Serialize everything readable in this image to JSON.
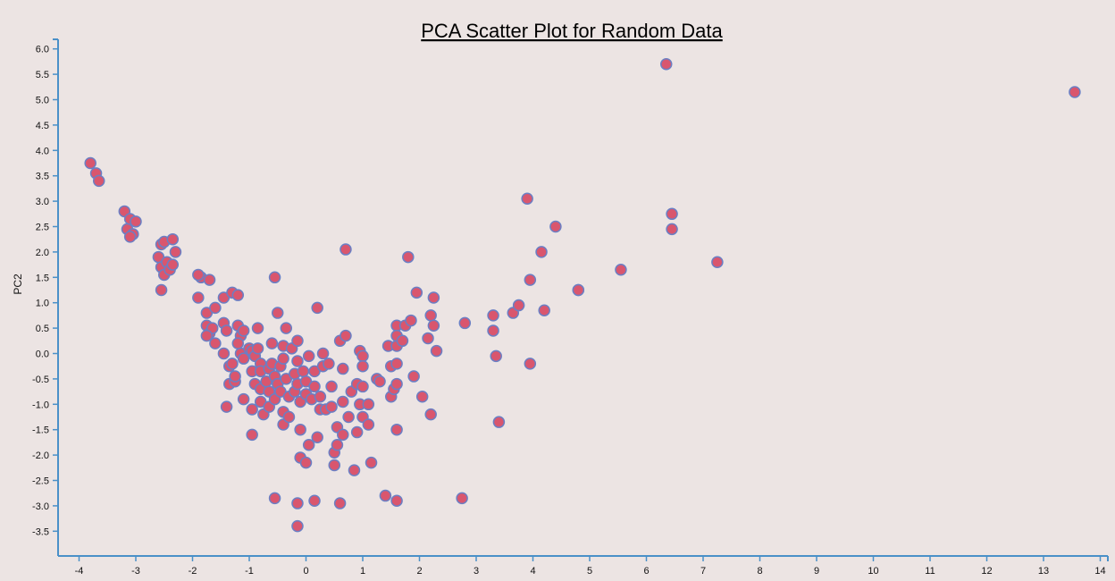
{
  "chart_data": {
    "type": "scatter",
    "title": "PCA Scatter Plot for Random Data",
    "xlabel": "",
    "ylabel": "PC2",
    "xlim": [
      -4.4,
      14.4
    ],
    "ylim": [
      -4.0,
      6.2
    ],
    "x_ticks": [
      "-4",
      "-3",
      "-2",
      "-1",
      "0",
      "1",
      "2",
      "3",
      "4",
      "5",
      "6",
      "7",
      "8",
      "9",
      "10",
      "11",
      "12",
      "13",
      "14"
    ],
    "y_ticks": [
      "-3.5",
      "-3.0",
      "-2.5",
      "-2.0",
      "-1.5",
      "-1.0",
      "-0.5",
      "0.0",
      "0.5",
      "1.0",
      "1.5",
      "2.0",
      "2.5",
      "3.0",
      "3.5",
      "4.0",
      "4.5",
      "5.0",
      "5.5",
      "6.0"
    ],
    "grid": false,
    "colors": {
      "point_fill": "#d9566e",
      "point_stroke": "#6b7fc4",
      "axis": "#4a90c8",
      "background": "#ece4e3"
    },
    "points": [
      [
        -3.8,
        3.75
      ],
      [
        -3.7,
        3.55
      ],
      [
        -3.65,
        3.4
      ],
      [
        -3.2,
        2.8
      ],
      [
        -3.15,
        2.45
      ],
      [
        -3.1,
        2.65
      ],
      [
        -3.05,
        2.35
      ],
      [
        -3.0,
        2.6
      ],
      [
        -3.1,
        2.3
      ],
      [
        -2.6,
        1.9
      ],
      [
        -2.55,
        2.15
      ],
      [
        -2.5,
        2.2
      ],
      [
        -2.55,
        1.7
      ],
      [
        -2.5,
        1.55
      ],
      [
        -2.45,
        1.8
      ],
      [
        -2.4,
        1.65
      ],
      [
        -2.35,
        1.75
      ],
      [
        -2.35,
        2.25
      ],
      [
        -2.3,
        2.0
      ],
      [
        -2.55,
        1.25
      ],
      [
        -1.9,
        1.1
      ],
      [
        -1.85,
        1.5
      ],
      [
        -1.9,
        1.55
      ],
      [
        -1.7,
        1.45
      ],
      [
        -1.75,
        0.8
      ],
      [
        -1.6,
        0.9
      ],
      [
        -1.75,
        0.55
      ],
      [
        -1.7,
        0.4
      ],
      [
        -1.65,
        0.5
      ],
      [
        -1.6,
        0.2
      ],
      [
        -1.75,
        0.35
      ],
      [
        -1.45,
        1.1
      ],
      [
        -1.3,
        1.2
      ],
      [
        -1.2,
        1.15
      ],
      [
        -1.45,
        0.6
      ],
      [
        -1.4,
        0.45
      ],
      [
        -1.45,
        0.0
      ],
      [
        -1.35,
        -0.25
      ],
      [
        -1.3,
        -0.2
      ],
      [
        -1.35,
        -0.6
      ],
      [
        -1.25,
        -0.55
      ],
      [
        -1.4,
        -1.05
      ],
      [
        -1.2,
        0.55
      ],
      [
        -1.15,
        0.35
      ],
      [
        -1.1,
        0.45
      ],
      [
        -1.2,
        0.2
      ],
      [
        -1.15,
        0.0
      ],
      [
        -1.1,
        -0.1
      ],
      [
        -1.0,
        0.1
      ],
      [
        -1.25,
        -0.45
      ],
      [
        -1.1,
        -0.9
      ],
      [
        -0.95,
        0.05
      ],
      [
        -0.9,
        -0.05
      ],
      [
        -0.95,
        -0.35
      ],
      [
        -0.9,
        -0.6
      ],
      [
        -0.95,
        -1.1
      ],
      [
        -0.95,
        -1.6
      ],
      [
        -0.85,
        0.5
      ],
      [
        -0.85,
        0.1
      ],
      [
        -0.8,
        -0.2
      ],
      [
        -0.8,
        -0.35
      ],
      [
        -0.8,
        -0.7
      ],
      [
        -0.8,
        -0.95
      ],
      [
        -0.75,
        -1.2
      ],
      [
        -0.7,
        -0.55
      ],
      [
        -0.65,
        -0.3
      ],
      [
        -0.65,
        -0.75
      ],
      [
        -0.65,
        -1.05
      ],
      [
        -0.6,
        0.2
      ],
      [
        -0.6,
        -0.2
      ],
      [
        -0.55,
        -0.45
      ],
      [
        -0.55,
        -0.9
      ],
      [
        -0.55,
        1.5
      ],
      [
        -0.5,
        0.8
      ],
      [
        -0.5,
        -0.6
      ],
      [
        -0.45,
        -0.25
      ],
      [
        -0.45,
        -0.75
      ],
      [
        -0.4,
        0.15
      ],
      [
        -0.4,
        -0.1
      ],
      [
        -0.4,
        -1.15
      ],
      [
        -0.4,
        -1.4
      ],
      [
        -0.35,
        0.5
      ],
      [
        -0.35,
        -0.5
      ],
      [
        -0.3,
        -0.85
      ],
      [
        -0.3,
        -1.25
      ],
      [
        -0.25,
        0.1
      ],
      [
        -0.2,
        -0.4
      ],
      [
        -0.2,
        -0.75
      ],
      [
        -0.15,
        0.25
      ],
      [
        -0.15,
        -0.15
      ],
      [
        -0.15,
        -0.6
      ],
      [
        -0.1,
        -0.95
      ],
      [
        -0.1,
        -1.5
      ],
      [
        -0.1,
        -2.05
      ],
      [
        -0.05,
        -0.35
      ],
      [
        0.0,
        -0.55
      ],
      [
        0.0,
        -0.8
      ],
      [
        0.0,
        -2.15
      ],
      [
        0.05,
        -0.05
      ],
      [
        0.05,
        -1.8
      ],
      [
        0.1,
        -0.9
      ],
      [
        0.15,
        -0.35
      ],
      [
        0.15,
        -0.65
      ],
      [
        0.2,
        0.9
      ],
      [
        0.2,
        -1.65
      ],
      [
        0.25,
        -1.1
      ],
      [
        0.25,
        -0.85
      ],
      [
        0.3,
        0.0
      ],
      [
        0.3,
        -0.25
      ],
      [
        0.35,
        -1.1
      ],
      [
        0.4,
        -0.2
      ],
      [
        0.45,
        -0.65
      ],
      [
        0.45,
        -1.05
      ],
      [
        0.5,
        -1.95
      ],
      [
        0.5,
        -2.2
      ],
      [
        0.55,
        -1.45
      ],
      [
        0.55,
        -1.8
      ],
      [
        0.6,
        0.25
      ],
      [
        0.65,
        -0.3
      ],
      [
        0.65,
        -0.95
      ],
      [
        0.65,
        -1.6
      ],
      [
        0.7,
        2.05
      ],
      [
        0.7,
        0.35
      ],
      [
        0.75,
        -1.25
      ],
      [
        0.8,
        -0.75
      ],
      [
        0.85,
        -2.3
      ],
      [
        0.9,
        -0.6
      ],
      [
        0.9,
        -1.55
      ],
      [
        0.95,
        0.05
      ],
      [
        0.95,
        -1.0
      ],
      [
        1.0,
        -0.05
      ],
      [
        1.0,
        -0.25
      ],
      [
        1.0,
        -1.25
      ],
      [
        1.0,
        -0.65
      ],
      [
        1.1,
        -1.0
      ],
      [
        1.1,
        -1.4
      ],
      [
        1.15,
        -2.15
      ],
      [
        1.25,
        -0.5
      ],
      [
        1.3,
        -0.55
      ],
      [
        1.45,
        0.15
      ],
      [
        1.5,
        -0.25
      ],
      [
        1.5,
        -0.85
      ],
      [
        1.55,
        -0.7
      ],
      [
        1.6,
        0.15
      ],
      [
        1.6,
        0.55
      ],
      [
        1.6,
        0.35
      ],
      [
        1.6,
        -0.2
      ],
      [
        1.6,
        -0.6
      ],
      [
        1.6,
        -1.5
      ],
      [
        1.7,
        0.25
      ],
      [
        1.75,
        0.55
      ],
      [
        1.8,
        1.9
      ],
      [
        1.85,
        0.65
      ],
      [
        1.9,
        -0.45
      ],
      [
        1.95,
        1.2
      ],
      [
        2.05,
        -0.85
      ],
      [
        2.15,
        0.3
      ],
      [
        2.2,
        0.75
      ],
      [
        2.2,
        -1.2
      ],
      [
        2.25,
        0.55
      ],
      [
        2.25,
        1.1
      ],
      [
        2.3,
        0.05
      ],
      [
        2.8,
        0.6
      ],
      [
        3.3,
        0.75
      ],
      [
        3.3,
        0.45
      ],
      [
        3.35,
        -0.05
      ],
      [
        3.4,
        -1.35
      ],
      [
        3.65,
        0.8
      ],
      [
        3.75,
        0.95
      ],
      [
        3.9,
        3.05
      ],
      [
        3.95,
        1.45
      ],
      [
        3.95,
        -0.2
      ],
      [
        4.15,
        2.0
      ],
      [
        4.2,
        0.85
      ],
      [
        4.4,
        2.5
      ],
      [
        4.8,
        1.25
      ],
      [
        4.8,
        1.25
      ],
      [
        5.55,
        1.65
      ],
      [
        6.35,
        5.7
      ],
      [
        6.45,
        2.45
      ],
      [
        6.45,
        2.75
      ],
      [
        7.25,
        1.8
      ],
      [
        13.55,
        5.15
      ],
      [
        -0.55,
        -2.85
      ],
      [
        -0.15,
        -2.95
      ],
      [
        0.15,
        -2.9
      ],
      [
        0.6,
        -2.95
      ],
      [
        1.4,
        -2.8
      ],
      [
        1.6,
        -2.9
      ],
      [
        2.75,
        -2.85
      ],
      [
        -0.15,
        -3.4
      ]
    ]
  }
}
